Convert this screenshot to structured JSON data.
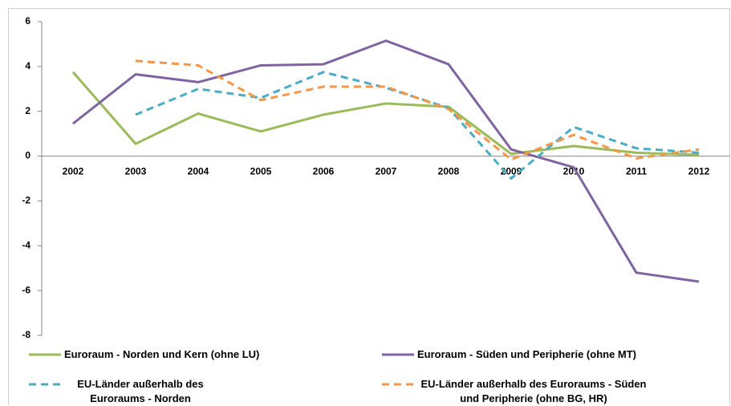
{
  "chart_data": {
    "type": "line",
    "categories": [
      "2002",
      "2003",
      "2004",
      "2005",
      "2006",
      "2007",
      "2008",
      "2009",
      "2010",
      "2011",
      "2012"
    ],
    "series": [
      {
        "name": "Euroraum - Norden und Kern (ohne LU)",
        "color": "#9bbb59",
        "dashed": false,
        "values": [
          3.75,
          0.55,
          1.9,
          1.1,
          1.85,
          2.35,
          2.2,
          0.1,
          0.45,
          0.15,
          0.05
        ]
      },
      {
        "name": "Euroraum - Süden und Peripherie (ohne MT)",
        "color": "#8064a2",
        "dashed": false,
        "values": [
          1.45,
          3.65,
          3.3,
          4.05,
          4.1,
          5.15,
          4.1,
          0.3,
          -0.5,
          -5.2,
          -5.6
        ]
      },
      {
        "name": "EU-Länder außerhalb des Euroraums - Norden",
        "color": "#4bacc6",
        "dashed": true,
        "values": [
          null,
          1.85,
          3.0,
          2.6,
          3.75,
          3.05,
          2.15,
          -1.0,
          1.3,
          0.35,
          0.15
        ]
      },
      {
        "name": "EU-Länder außerhalb des Euroraums - Süden und Peripherie (ohne BG, HR)",
        "color": "#f79646",
        "dashed": true,
        "values": [
          null,
          4.25,
          4.05,
          2.5,
          3.1,
          3.1,
          2.1,
          -0.15,
          0.95,
          -0.1,
          0.3
        ]
      }
    ],
    "ylim": [
      -8,
      6
    ],
    "yticks": [
      -8,
      -6,
      -4,
      -2,
      0,
      2,
      4,
      6
    ],
    "grid": false
  }
}
